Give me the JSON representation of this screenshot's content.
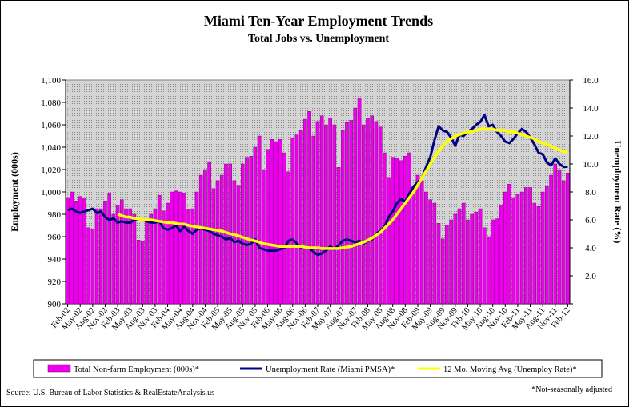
{
  "chart_data": {
    "type": "bar_line",
    "title": "Miami Ten-Year Employment Trends",
    "subtitle": "Total Jobs vs. Unemployment",
    "y_label": "Employment (000s)",
    "y2_label": "Unemployment Rate (%)",
    "source": "Source: U.S. Bureau of Labor Statistics & RealEstateAnalysis.us",
    "note": "*Not-seasonally adjusted",
    "categories": [
      "Feb-02",
      null,
      null,
      "May-02",
      null,
      null,
      "Aug-02",
      null,
      null,
      "Nov-02",
      null,
      null,
      "Feb-03",
      null,
      null,
      "May-03",
      null,
      null,
      "Aug-03",
      null,
      null,
      "Nov-03",
      null,
      null,
      "Feb-04",
      null,
      null,
      "May-04",
      null,
      null,
      "Aug-04",
      null,
      null,
      "Nov-04",
      null,
      null,
      "Feb-05",
      null,
      null,
      "May-05",
      null,
      null,
      "Aug-05",
      null,
      null,
      "Nov-05",
      null,
      null,
      "Feb-06",
      null,
      null,
      "May-06",
      null,
      null,
      "Aug-06",
      null,
      null,
      "Nov-06",
      null,
      null,
      "Feb-07",
      null,
      null,
      "May-07",
      null,
      null,
      "Aug-07",
      null,
      null,
      "Nov-07",
      null,
      null,
      "Feb-08",
      null,
      null,
      "May-08",
      null,
      null,
      "Aug-08",
      null,
      null,
      "Nov-08",
      null,
      null,
      "Feb-09",
      null,
      null,
      "May-09",
      null,
      null,
      "Aug-09",
      null,
      null,
      "Nov-09",
      null,
      null,
      "Feb-10",
      null,
      null,
      "May-10",
      null,
      null,
      "Aug-10",
      null,
      null,
      "Nov-10",
      null,
      null,
      "Feb-11",
      null,
      null,
      "May-11",
      null,
      null,
      "Aug-11",
      null,
      null,
      "Nov-11",
      null,
      null,
      "Feb-12"
    ],
    "series": [
      {
        "name": "Total Non-farm Employment (000s)*",
        "type": "bar",
        "color": "#ee00ee",
        "values": [
          995,
          1000,
          992,
          996,
          994,
          968,
          967,
          985,
          985,
          992,
          999,
          980,
          988,
          993,
          985,
          985,
          980,
          957,
          956,
          975,
          980,
          985,
          997,
          983,
          990,
          1000,
          1001,
          1000,
          999,
          984,
          985,
          1000,
          1015,
          1020,
          1027,
          1003,
          1010,
          1015,
          1025,
          1025,
          1010,
          1006,
          1025,
          1031,
          1032,
          1040,
          1050,
          1020,
          1038,
          1047,
          1045,
          1047,
          1035,
          1018,
          1048,
          1051,
          1055,
          1065,
          1072,
          1050,
          1063,
          1068,
          1060,
          1066,
          1060,
          1022,
          1055,
          1062,
          1064,
          1075,
          1084,
          1060,
          1066,
          1068,
          1063,
          1058,
          1035,
          1013,
          1031,
          1030,
          1028,
          1032,
          1035,
          1005,
          1015,
          1010,
          1000,
          993,
          990,
          972,
          958,
          970,
          975,
          980,
          985,
          990,
          975,
          980,
          982,
          985,
          968,
          960,
          975,
          976,
          988,
          1000,
          1007,
          995,
          998,
          1000,
          1004,
          1004,
          990,
          987,
          1000,
          1005,
          1015,
          1025,
          1020,
          1010,
          1017
        ]
      },
      {
        "name": "Unemployment Rate (Miami PMSA)*",
        "type": "line",
        "axis": "y2",
        "color": "#000080",
        "values": [
          6.7,
          6.8,
          6.6,
          6.5,
          6.6,
          6.7,
          6.8,
          6.5,
          6.6,
          6.2,
          6.0,
          6.1,
          5.8,
          5.9,
          5.8,
          5.8,
          6.0,
          6.1,
          6.0,
          5.9,
          5.8,
          5.8,
          5.9,
          5.4,
          5.3,
          5.4,
          5.6,
          5.2,
          5.5,
          5.2,
          5.0,
          5.3,
          5.4,
          5.3,
          5.2,
          5.0,
          4.9,
          4.8,
          4.6,
          4.7,
          4.4,
          4.5,
          4.3,
          4.2,
          4.3,
          4.6,
          4.0,
          3.9,
          3.8,
          3.8,
          3.8,
          3.9,
          4.0,
          4.5,
          4.6,
          4.3,
          4.0,
          4.1,
          4.0,
          3.7,
          3.5,
          3.6,
          3.8,
          4.1,
          3.9,
          4.2,
          4.5,
          4.6,
          4.5,
          4.4,
          4.5,
          4.3,
          4.5,
          4.6,
          5.0,
          5.2,
          5.5,
          6.2,
          6.6,
          7.2,
          7.5,
          7.3,
          7.9,
          8.4,
          8.7,
          9.0,
          9.8,
          10.5,
          11.7,
          12.7,
          12.4,
          12.3,
          11.9,
          11.3,
          12.1,
          12.0,
          12.3,
          12.5,
          12.8,
          13.0,
          13.5,
          12.7,
          12.8,
          12.3,
          12.0,
          11.6,
          11.5,
          11.8,
          12.2,
          12.5,
          12.3,
          11.9,
          11.4,
          10.8,
          10.7,
          10.1,
          9.9,
          10.4,
          10.0,
          9.8,
          9.8
        ]
      },
      {
        "name": "12 Mo. Moving Avg (Unemploy Rate)*",
        "type": "line",
        "axis": "y2",
        "color": "#ffff00",
        "values": [
          null,
          null,
          null,
          null,
          null,
          null,
          null,
          null,
          null,
          null,
          null,
          null,
          6.4,
          6.3,
          6.2,
          6.2,
          6.1,
          6.1,
          6.0,
          6.0,
          6.0,
          5.95,
          5.9,
          5.85,
          5.8,
          5.8,
          5.75,
          5.7,
          5.7,
          5.6,
          5.55,
          5.5,
          5.45,
          5.4,
          5.35,
          5.3,
          5.25,
          5.2,
          5.1,
          5.0,
          4.95,
          4.85,
          4.75,
          4.65,
          4.55,
          4.5,
          4.4,
          4.3,
          4.25,
          4.2,
          4.15,
          4.1,
          4.1,
          4.1,
          4.1,
          4.1,
          4.1,
          4.05,
          4.0,
          4.0,
          4.0,
          3.95,
          3.95,
          3.95,
          3.95,
          3.95,
          4.0,
          4.05,
          4.1,
          4.2,
          4.3,
          4.4,
          4.55,
          4.7,
          4.9,
          5.1,
          5.4,
          5.7,
          6.0,
          6.4,
          6.8,
          7.2,
          7.6,
          8.0,
          8.5,
          9.0,
          9.5,
          10.0,
          10.5,
          10.9,
          11.3,
          11.6,
          11.8,
          12.0,
          12.1,
          12.2,
          12.3,
          12.3,
          12.4,
          12.5,
          12.5,
          12.5,
          12.5,
          12.4,
          12.4,
          12.4,
          12.3,
          12.3,
          12.2,
          12.1,
          12.0,
          11.9,
          11.8,
          11.6,
          11.5,
          11.4,
          11.3,
          11.1,
          11.0,
          10.9,
          10.8
        ]
      }
    ],
    "ylim": [
      900,
      1100
    ],
    "yticks": [
      900,
      920,
      940,
      960,
      980,
      {
        "value": 1000,
        "label": "1,000"
      },
      {
        "value": 1020,
        "label": "1,020"
      },
      {
        "value": 1040,
        "label": "1,040"
      },
      {
        "value": 1060,
        "label": "1,060"
      },
      {
        "value": 1080,
        "label": "1,080"
      },
      {
        "value": 1100,
        "label": "1,100"
      }
    ],
    "y2lim": [
      0,
      16
    ],
    "y2ticks": [
      {
        "value": 0,
        "label": "-"
      },
      {
        "value": 2,
        "label": "2.0"
      },
      {
        "value": 4,
        "label": "4.0"
      },
      {
        "value": 6,
        "label": "6.0"
      },
      {
        "value": 8,
        "label": "8.0"
      },
      {
        "value": 10,
        "label": "10.0"
      },
      {
        "value": 12,
        "label": "12.0"
      },
      {
        "value": 14,
        "label": "14.0"
      },
      {
        "value": 16,
        "label": "16.0"
      }
    ],
    "plot_background": "#c8c8c8"
  }
}
